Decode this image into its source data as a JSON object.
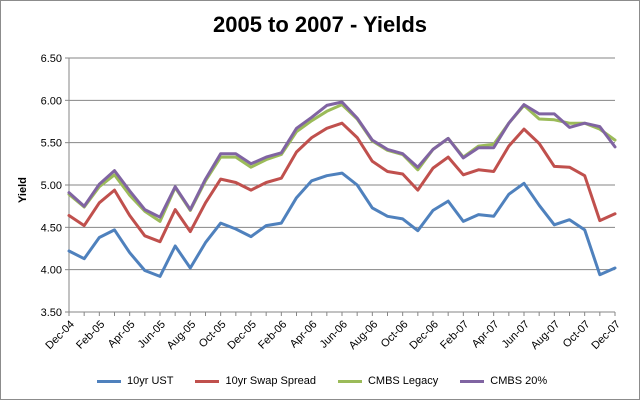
{
  "chart_data": {
    "type": "line",
    "title": "2005 to 2007 - Yields",
    "xlabel": "",
    "ylabel": "Yield",
    "ylim": [
      3.5,
      6.5
    ],
    "y_ticks": [
      "3.50",
      "4.00",
      "4.50",
      "5.00",
      "5.50",
      "6.00",
      "6.50"
    ],
    "x_tick_labels": [
      "Dec-04",
      "Feb-05",
      "Apr-05",
      "Jun-05",
      "Aug-05",
      "Oct-05",
      "Dec-05",
      "Feb-06",
      "Apr-06",
      "Jun-06",
      "Aug-06",
      "Oct-06",
      "Dec-06",
      "Feb-07",
      "Apr-07",
      "Jun-07",
      "Aug-07",
      "Oct-07",
      "Dec-07"
    ],
    "categories": [
      "Dec-04",
      "Jan-05",
      "Feb-05",
      "Mar-05",
      "Apr-05",
      "May-05",
      "Jun-05",
      "Jul-05",
      "Aug-05",
      "Sep-05",
      "Oct-05",
      "Nov-05",
      "Dec-05",
      "Jan-06",
      "Feb-06",
      "Mar-06",
      "Apr-06",
      "May-06",
      "Jun-06",
      "Jul-06",
      "Aug-06",
      "Sep-06",
      "Oct-06",
      "Nov-06",
      "Dec-06",
      "Jan-07",
      "Feb-07",
      "Mar-07",
      "Apr-07",
      "May-07",
      "Jun-07",
      "Jul-07",
      "Aug-07",
      "Sep-07",
      "Oct-07",
      "Nov-07",
      "Dec-07"
    ],
    "grid": true,
    "legend_position": "bottom",
    "series": [
      {
        "name": "10yr UST",
        "color": "#4f81bd",
        "values": [
          4.22,
          4.13,
          4.38,
          4.47,
          4.2,
          3.99,
          3.92,
          4.28,
          4.02,
          4.32,
          4.55,
          4.48,
          4.39,
          4.52,
          4.55,
          4.85,
          5.05,
          5.11,
          5.14,
          5.0,
          4.73,
          4.63,
          4.6,
          4.46,
          4.7,
          4.81,
          4.57,
          4.65,
          4.63,
          4.89,
          5.02,
          4.76,
          4.53,
          4.59,
          4.47,
          3.94,
          4.02
        ]
      },
      {
        "name": "10yr Swap Spread",
        "color": "#c0504d",
        "values": [
          4.64,
          4.52,
          4.79,
          4.94,
          4.64,
          4.4,
          4.33,
          4.71,
          4.45,
          4.79,
          5.07,
          5.03,
          4.94,
          5.03,
          5.08,
          5.39,
          5.56,
          5.67,
          5.73,
          5.56,
          5.28,
          5.16,
          5.13,
          4.94,
          5.2,
          5.33,
          5.12,
          5.18,
          5.16,
          5.46,
          5.66,
          5.49,
          5.22,
          5.21,
          5.11,
          4.58,
          4.66
        ]
      },
      {
        "name": "CMBS Legacy",
        "color": "#9bbb59",
        "values": [
          4.89,
          4.74,
          4.98,
          5.12,
          4.88,
          4.69,
          4.57,
          4.97,
          4.7,
          5.05,
          5.33,
          5.33,
          5.21,
          5.3,
          5.36,
          5.63,
          5.76,
          5.87,
          5.95,
          5.78,
          5.52,
          5.41,
          5.36,
          5.18,
          5.42,
          5.55,
          5.33,
          5.46,
          5.48,
          5.73,
          5.94,
          5.78,
          5.77,
          5.73,
          5.73,
          5.66,
          5.53
        ]
      },
      {
        "name": "CMBS 20%",
        "color": "#8064a2",
        "values": [
          4.91,
          4.75,
          5.01,
          5.17,
          4.93,
          4.71,
          4.62,
          4.98,
          4.71,
          5.07,
          5.37,
          5.37,
          5.25,
          5.33,
          5.38,
          5.67,
          5.8,
          5.94,
          5.98,
          5.79,
          5.53,
          5.42,
          5.37,
          5.21,
          5.42,
          5.55,
          5.32,
          5.44,
          5.44,
          5.73,
          5.95,
          5.84,
          5.84,
          5.68,
          5.73,
          5.69,
          5.45
        ]
      }
    ]
  }
}
